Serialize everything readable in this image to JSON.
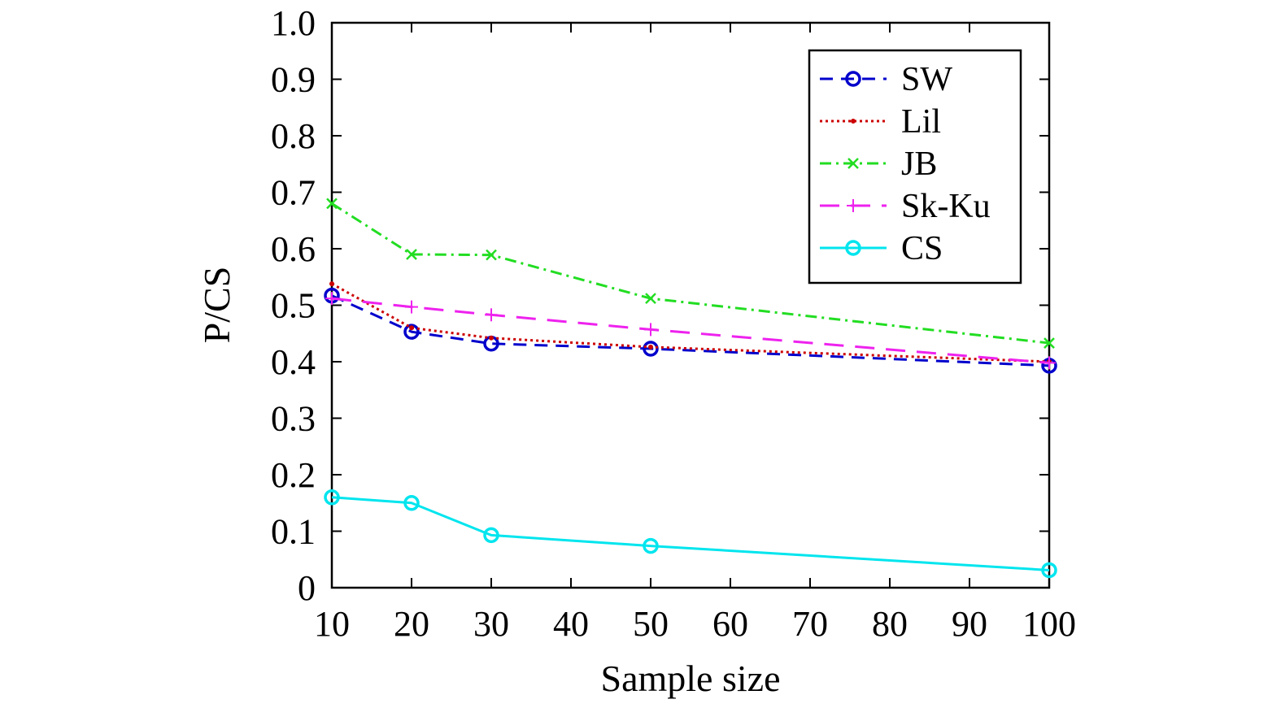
{
  "chart_data": {
    "type": "line",
    "title": "",
    "xlabel": "Sample size",
    "ylabel": "P/CS",
    "xlim": [
      10,
      100
    ],
    "ylim": [
      0,
      1.0
    ],
    "x_ticks": [
      "10",
      "20",
      "30",
      "40",
      "50",
      "60",
      "70",
      "80",
      "90",
      "100"
    ],
    "y_ticks": [
      "0",
      "0.1",
      "0.2",
      "0.3",
      "0.4",
      "0.5",
      "0.6",
      "0.7",
      "0.8",
      "0.9",
      "1.0"
    ],
    "grid": false,
    "legend_position": "top-right",
    "x": [
      10,
      20,
      30,
      50,
      100
    ],
    "series": [
      {
        "name": "SW",
        "values": [
          0.517,
          0.453,
          0.432,
          0.423,
          0.393
        ],
        "color": "#0000cc",
        "dash": "dashed",
        "marker": "circle"
      },
      {
        "name": "Lil",
        "values": [
          0.538,
          0.46,
          0.442,
          0.426,
          0.4
        ],
        "color": "#cc0000",
        "dash": "dotted",
        "marker": "dot"
      },
      {
        "name": "JB",
        "values": [
          0.68,
          0.59,
          0.589,
          0.512,
          0.433
        ],
        "color": "#22dd22",
        "dash": "dashdot",
        "marker": "x"
      },
      {
        "name": "Sk-Ku",
        "values": [
          0.512,
          0.497,
          0.483,
          0.457,
          0.398
        ],
        "color": "#ee22ee",
        "dash": "longdash",
        "marker": "plus"
      },
      {
        "name": "CS",
        "values": [
          0.16,
          0.15,
          0.093,
          0.074,
          0.031
        ],
        "color": "#00e5ee",
        "dash": "solid",
        "marker": "circle"
      }
    ]
  }
}
